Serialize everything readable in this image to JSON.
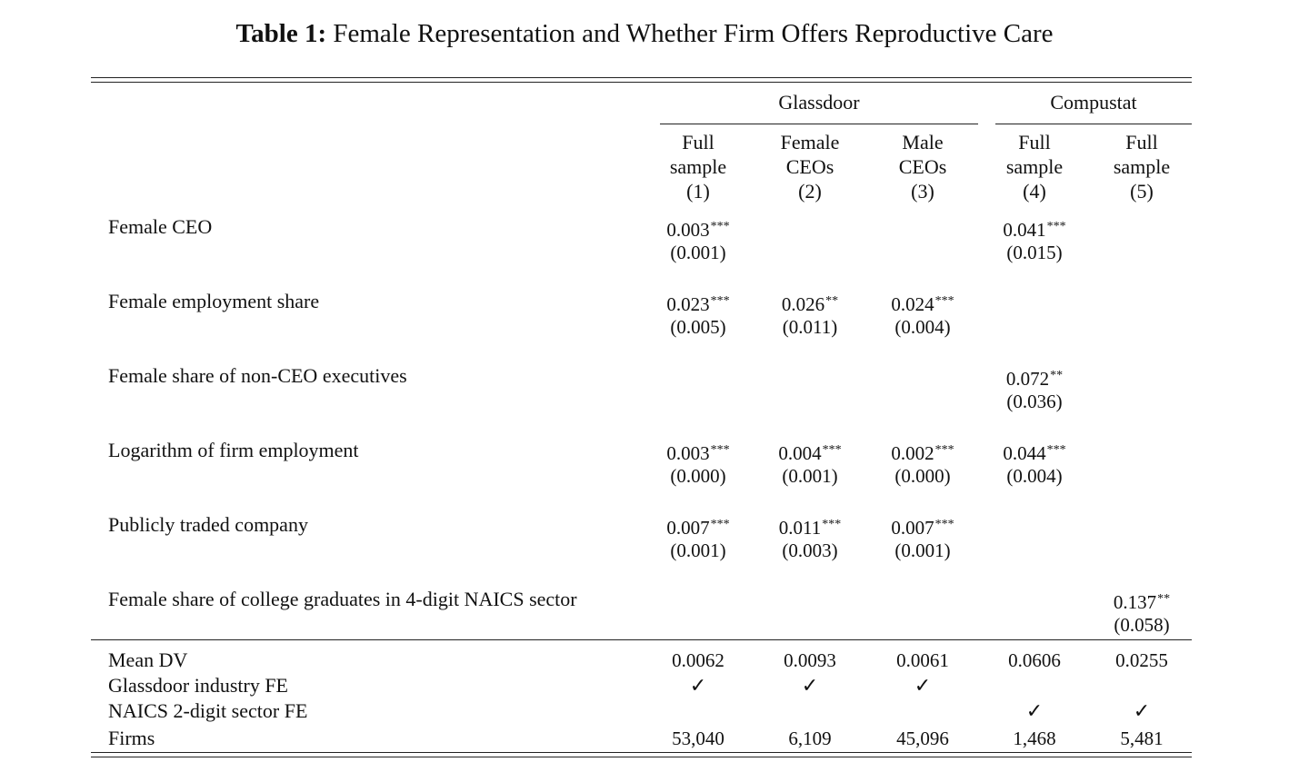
{
  "caption": {
    "label": "Table 1:",
    "text": "Female Representation and Whether Firm Offers Reproductive Care"
  },
  "groups": [
    {
      "name": "Glassdoor"
    },
    {
      "name": "Compustat"
    }
  ],
  "columns": [
    {
      "line1": "Full",
      "line2": "sample",
      "num": "(1)"
    },
    {
      "line1": "Female",
      "line2": "CEOs",
      "num": "(2)"
    },
    {
      "line1": "Male",
      "line2": "CEOs",
      "num": "(3)"
    },
    {
      "line1": "Full",
      "line2": "sample",
      "num": "(4)"
    },
    {
      "line1": "Full",
      "line2": "sample",
      "num": "(5)"
    }
  ],
  "rows": [
    {
      "label": "Female CEO",
      "cells": [
        {
          "coef": "0.003",
          "stars": "***",
          "se": "(0.001)"
        },
        null,
        null,
        {
          "coef": "0.041",
          "stars": "***",
          "se": "(0.015)"
        },
        null
      ]
    },
    {
      "label": "Female employment share",
      "cells": [
        {
          "coef": "0.023",
          "stars": "***",
          "se": "(0.005)"
        },
        {
          "coef": "0.026",
          "stars": "**",
          "se": "(0.011)"
        },
        {
          "coef": "0.024",
          "stars": "***",
          "se": "(0.004)"
        },
        null,
        null
      ]
    },
    {
      "label": "Female share of non-CEO executives",
      "cells": [
        null,
        null,
        null,
        {
          "coef": "0.072",
          "stars": "**",
          "se": "(0.036)"
        },
        null
      ]
    },
    {
      "label": "Logarithm of firm employment",
      "cells": [
        {
          "coef": "0.003",
          "stars": "***",
          "se": "(0.000)"
        },
        {
          "coef": "0.004",
          "stars": "***",
          "se": "(0.001)"
        },
        {
          "coef": "0.002",
          "stars": "***",
          "se": "(0.000)"
        },
        {
          "coef": "0.044",
          "stars": "***",
          "se": "(0.004)"
        },
        null
      ]
    },
    {
      "label": "Publicly traded company",
      "cells": [
        {
          "coef": "0.007",
          "stars": "***",
          "se": "(0.001)"
        },
        {
          "coef": "0.011",
          "stars": "***",
          "se": "(0.003)"
        },
        {
          "coef": "0.007",
          "stars": "***",
          "se": "(0.001)"
        },
        null,
        null
      ]
    },
    {
      "label": "Female share of college graduates in 4-digit NAICS sector",
      "cells": [
        null,
        null,
        null,
        null,
        {
          "coef": "0.137",
          "stars": "**",
          "se": "(0.058)"
        }
      ]
    }
  ],
  "stats": {
    "mean_dv": {
      "label": "Mean DV",
      "values": [
        "0.0062",
        "0.0093",
        "0.0061",
        "0.0606",
        "0.0255"
      ]
    },
    "glassdoor_fe": {
      "label": "Glassdoor industry FE",
      "checks": [
        true,
        true,
        true,
        false,
        false
      ]
    },
    "naics_fe": {
      "label": "NAICS 2-digit sector FE",
      "checks": [
        false,
        false,
        false,
        true,
        true
      ]
    },
    "firms": {
      "label": "Firms",
      "values": [
        "53,040",
        "6,109",
        "45,096",
        "1,468",
        "5,481"
      ]
    },
    "check_symbol": "✓"
  }
}
